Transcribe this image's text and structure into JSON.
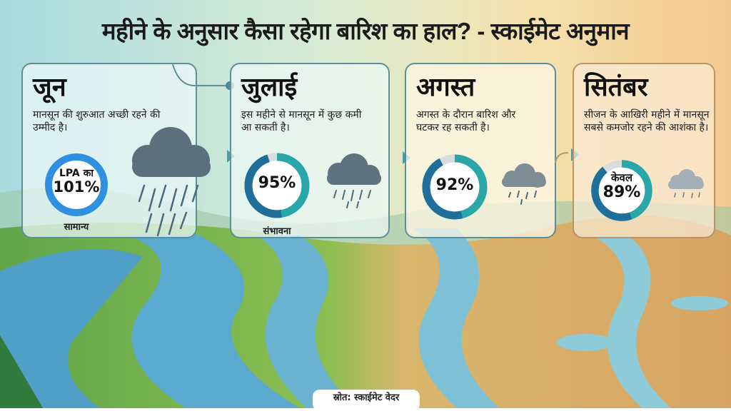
{
  "title": "महीने के अनुसार कैसा रहेगा बारिश का हाल? - स्काईमेट अनुमान",
  "colors": {
    "june_ring": "#2f8fe0",
    "ring_dark": "#1f6f9a",
    "ring_light": "#2aa6a9",
    "ring_gap": "#d8dcdc"
  },
  "months": [
    {
      "name": "जून",
      "description": "मानसून की शुरुआत अच्छी रहने की उम्मीद है।",
      "value_prefix": "LPA का",
      "value": "101%",
      "percent": 101,
      "caption": "सामान्य",
      "icon": "heavy-rain-cloud-icon"
    },
    {
      "name": "जुलाई",
      "description": "इस महीने से मानसून में कुछ कमी आ सकती है।",
      "value": "95%",
      "percent": 95,
      "caption": "संभावना",
      "icon": "rain-cloud-icon"
    },
    {
      "name": "अगस्त",
      "description": "अगस्त के दौरान बारिश और घटकर रह सकती है।",
      "value": "92%",
      "percent": 92,
      "icon": "light-rain-cloud-icon"
    },
    {
      "name": "सितंबर",
      "description": "सीजन के आखिरी महीने में मानसून सबसे कमजोर रहने की आशंका है।",
      "value_prefix": "केवल",
      "value": "89%",
      "percent": 89,
      "icon": "drizzle-cloud-icon"
    }
  ],
  "source": "स्रोत: स्काईमेट वेदर"
}
